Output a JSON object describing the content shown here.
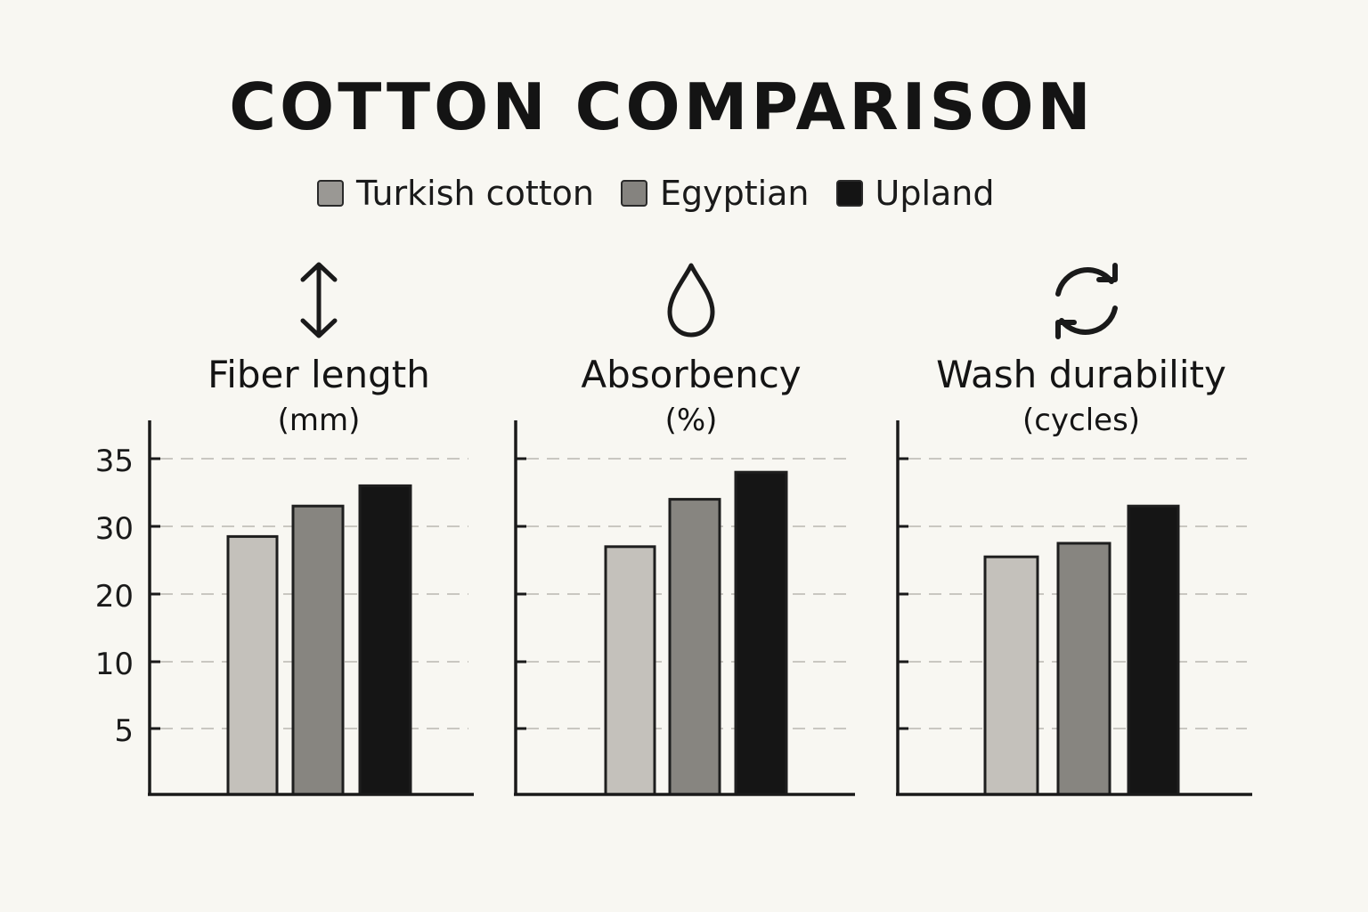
{
  "title": "COTTON COMPARISON",
  "legend": [
    {
      "label": "Turkish cotton",
      "color": "#9a9894"
    },
    {
      "label": "Egyptian",
      "color": "#85837f"
    },
    {
      "label": "Upland",
      "color": "#141414"
    }
  ],
  "colors": {
    "bar_fills": [
      "#c4c1bb",
      "#878580",
      "#151515"
    ],
    "grid": "#c9c7c1",
    "axis": "#1a1a1a"
  },
  "chart_data": [
    {
      "type": "bar",
      "title": "Fiber length",
      "unit": "(mm)",
      "icon": "vertical-arrows-icon",
      "y_ticks": [
        "35",
        "30",
        "20",
        "10",
        "5"
      ],
      "series": [
        {
          "name": "Turkish cotton",
          "values": [
            28.5
          ]
        },
        {
          "name": "Egyptian",
          "values": [
            31.5
          ]
        },
        {
          "name": "Upland",
          "values": [
            33
          ]
        }
      ],
      "grid": true
    },
    {
      "type": "bar",
      "title": "Absorbency",
      "unit": "(%)",
      "icon": "water-drop-icon",
      "y_ticks": [],
      "series": [
        {
          "name": "Turkish cotton",
          "values": [
            27
          ]
        },
        {
          "name": "Egyptian",
          "values": [
            32
          ]
        },
        {
          "name": "Upland",
          "values": [
            34
          ]
        }
      ],
      "grid": true
    },
    {
      "type": "bar",
      "title": "Wash durability",
      "unit": "(cycles)",
      "icon": "refresh-cycle-icon",
      "y_ticks": [],
      "series": [
        {
          "name": "Turkish cotton",
          "values": [
            25.5
          ]
        },
        {
          "name": "Egyptian",
          "values": [
            27.5
          ]
        },
        {
          "name": "Upland",
          "values": [
            31.5
          ]
        }
      ],
      "grid": true
    }
  ]
}
